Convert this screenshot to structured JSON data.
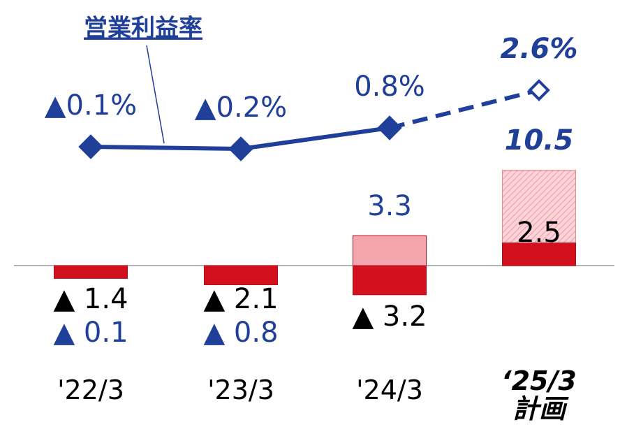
{
  "chart_data": {
    "type": "bar-line",
    "categories": [
      "'22/3",
      "'23/3",
      "'24/3",
      "‘25/3\n計画"
    ],
    "ylim": [
      -18.5,
      29.2
    ],
    "y2lim": [
      -13.8,
      6.9
    ],
    "series": [
      {
        "color": "#f4a4ac",
        "values": [
          -0.1,
          -0.8,
          3.3,
          10.5
        ],
        "value_labels": [
          "▲ 0.1",
          "▲ 0.8",
          "3.3",
          "10.5"
        ]
      },
      {
        "color": "#d2101e",
        "values": [
          -1.4,
          -2.1,
          -3.2,
          2.5
        ],
        "value_labels": [
          "▲ 1.4",
          "▲ 2.1",
          "▲ 3.2",
          "2.5"
        ]
      },
      {
        "name": "営業利益率",
        "type": "line",
        "axis": "y2",
        "color": "#1f3f99",
        "values": [
          -0.1,
          -0.2,
          0.8,
          2.6
        ],
        "value_labels": [
          "▲0.1%",
          "▲0.2%",
          "0.8%",
          "2.6%"
        ]
      }
    ]
  }
}
